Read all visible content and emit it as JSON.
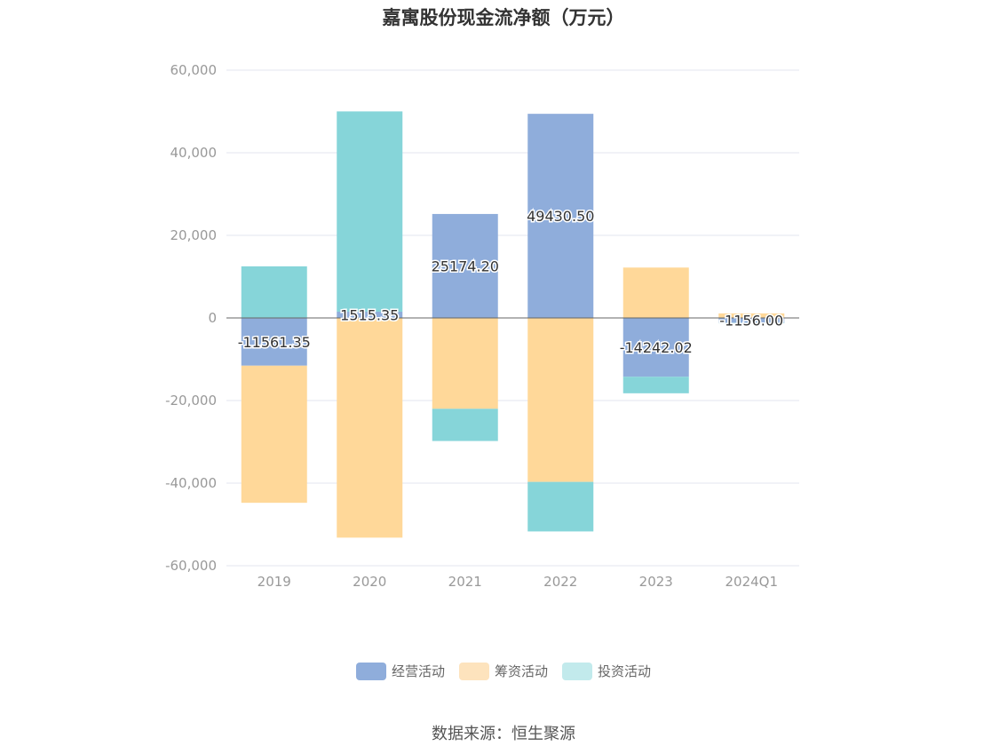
{
  "chart_data": {
    "type": "bar",
    "stacked": true,
    "title": "嘉寓股份现金流净额（万元）",
    "categories": [
      "2019",
      "2020",
      "2021",
      "2022",
      "2023",
      "2024Q1"
    ],
    "series": [
      {
        "name": "经营活动",
        "color": "#8faddb",
        "values": [
          -11561.35,
          1515.35,
          25174.2,
          49430.5,
          -14242.02,
          -1156.0
        ],
        "labels": [
          "-11561.35",
          "1515.35",
          "25174.20",
          "49430.50",
          "-14242.02",
          "-1156.00"
        ]
      },
      {
        "name": "筹资活动",
        "color": "#ffd899",
        "values": [
          -33200,
          -53200,
          -22000,
          -39700,
          12200,
          1100
        ]
      },
      {
        "name": "投资活动",
        "color": "#86d5d9",
        "values": [
          12500,
          48500,
          -7800,
          -12000,
          -4000,
          -150
        ]
      }
    ],
    "ylim": [
      -60000,
      60000
    ],
    "yticks": [
      "60,000",
      "40,000",
      "20,000",
      "0",
      "-20,000",
      "-40,000",
      "-60,000"
    ],
    "grid": true,
    "legend_position": "bottom"
  },
  "legend": [
    {
      "label": "经营活动",
      "color": "#8faddb"
    },
    {
      "label": "筹资活动",
      "color": "#fde3bd"
    },
    {
      "label": "投资活动",
      "color": "#c2eaec"
    }
  ],
  "source": "数据来源：恒生聚源"
}
